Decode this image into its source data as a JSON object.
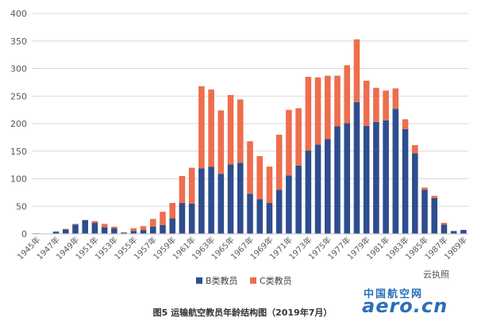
{
  "chart_data": {
    "type": "bar",
    "stacked": true,
    "categories": [
      "1945年",
      "1946年",
      "1947年",
      "1948年",
      "1949年",
      "1950年",
      "1951年",
      "1952年",
      "1953年",
      "1954年",
      "1955年",
      "1956年",
      "1957年",
      "1958年",
      "1959年",
      "1960年",
      "1961年",
      "1962年",
      "1963年",
      "1964年",
      "1965年",
      "1966年",
      "1967年",
      "1968年",
      "1969年",
      "1970年",
      "1971年",
      "1972年",
      "1973年",
      "1974年",
      "1975年",
      "1976年",
      "1977年",
      "1978年",
      "1979年",
      "1980年",
      "1981年",
      "1982年",
      "1983年",
      "1984年",
      "1985年",
      "1986年",
      "1987年",
      "1988年",
      "1989年"
    ],
    "tick_labels": [
      "1945年",
      "1947年",
      "1949年",
      "1951年",
      "1953年",
      "1955年",
      "1957年",
      "1959年",
      "1961年",
      "1963年",
      "1965年",
      "1967年",
      "1969年",
      "1971年",
      "1973年",
      "1975年",
      "1977年",
      "1979年",
      "1981年",
      "1983年",
      "1985年",
      "1987年",
      "1989年"
    ],
    "series": [
      {
        "name": "B类教员",
        "color": "#2e4d8f",
        "values": [
          1,
          0,
          4,
          8,
          17,
          25,
          20,
          12,
          10,
          2,
          5,
          7,
          13,
          16,
          28,
          56,
          55,
          119,
          122,
          109,
          126,
          129,
          73,
          63,
          56,
          80,
          106,
          124,
          151,
          162,
          172,
          195,
          201,
          239,
          196,
          203,
          206,
          227,
          190,
          146,
          80,
          65,
          17,
          5,
          7
        ]
      },
      {
        "name": "C类教员",
        "color": "#ee6e4e",
        "values": [
          0,
          0,
          0,
          1,
          1,
          0,
          3,
          6,
          3,
          1,
          5,
          7,
          14,
          24,
          28,
          49,
          65,
          149,
          140,
          115,
          126,
          115,
          95,
          78,
          66,
          100,
          119,
          104,
          134,
          122,
          115,
          92,
          105,
          114,
          82,
          62,
          54,
          37,
          18,
          15,
          4,
          4,
          3,
          0,
          0
        ]
      }
    ],
    "ylim": [
      0,
      400
    ],
    "yticks": [
      0,
      50,
      100,
      150,
      200,
      250,
      300,
      350,
      400
    ],
    "grid": true,
    "legend_position": "bottom"
  },
  "caption": "图5 运输航空教员年龄结构图（2019年7月）",
  "watermark": {
    "badge": "云执照",
    "site_cn": "中国航空网",
    "site_en": "aero.cn"
  }
}
